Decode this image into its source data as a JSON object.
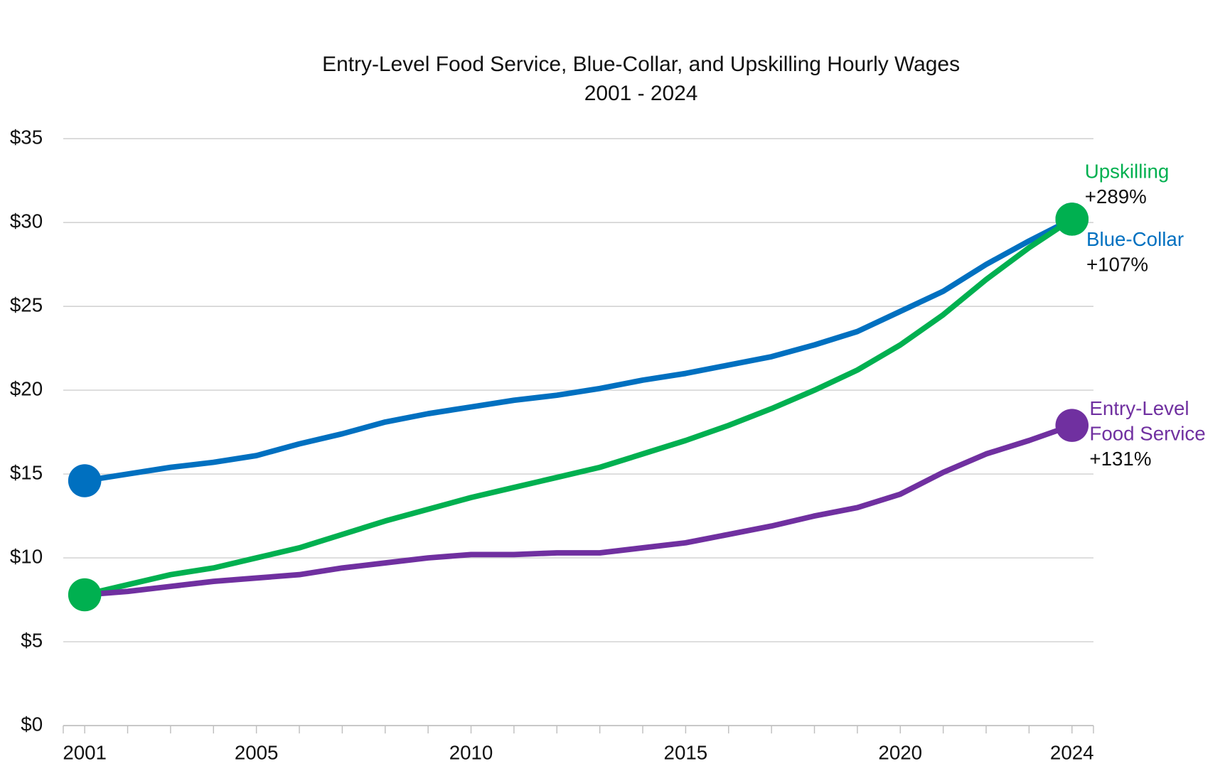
{
  "chart_data": {
    "type": "line",
    "title": "Entry-Level Food Service, Blue-Collar, and Upskilling Hourly Wages",
    "subtitle": "2001 - 2024",
    "x": [
      2001,
      2002,
      2003,
      2004,
      2005,
      2006,
      2007,
      2008,
      2009,
      2010,
      2011,
      2012,
      2013,
      2014,
      2015,
      2016,
      2017,
      2018,
      2019,
      2020,
      2021,
      2022,
      2023,
      2024
    ],
    "xlim": [
      2000.5,
      2024.5
    ],
    "xticks": [
      2001,
      2005,
      2010,
      2015,
      2020,
      2024
    ],
    "ylim": [
      0,
      35
    ],
    "yticks": [
      {
        "value": 0,
        "label": "$0"
      },
      {
        "value": 5,
        "label": "$5"
      },
      {
        "value": 10,
        "label": "$10"
      },
      {
        "value": 15,
        "label": "$15"
      },
      {
        "value": 20,
        "label": "$20"
      },
      {
        "value": 25,
        "label": "$25"
      },
      {
        "value": 30,
        "label": "$30"
      },
      {
        "value": 35,
        "label": "$35"
      }
    ],
    "grid": true,
    "series": [
      {
        "name": "Blue-Collar",
        "color": "#0070c0",
        "change": "+107%",
        "values": [
          14.6,
          15.0,
          15.4,
          15.7,
          16.1,
          16.8,
          17.4,
          18.1,
          18.6,
          19.0,
          19.4,
          19.7,
          20.1,
          20.6,
          21.0,
          21.5,
          22.0,
          22.7,
          23.5,
          24.7,
          25.9,
          27.5,
          28.9,
          30.2
        ]
      },
      {
        "name": "Upskilling",
        "color": "#00b050",
        "change": "+289%",
        "values": [
          7.8,
          8.4,
          9.0,
          9.4,
          10.0,
          10.6,
          11.4,
          12.2,
          12.9,
          13.6,
          14.2,
          14.8,
          15.4,
          16.2,
          17.0,
          17.9,
          18.9,
          20.0,
          21.2,
          22.7,
          24.5,
          26.6,
          28.5,
          30.2
        ]
      },
      {
        "name": "Entry-Level Food Service",
        "color": "#7030a0",
        "change": "+131%",
        "values": [
          7.8,
          8.0,
          8.3,
          8.6,
          8.8,
          9.0,
          9.4,
          9.7,
          10.0,
          10.2,
          10.2,
          10.3,
          10.3,
          10.6,
          10.9,
          11.4,
          11.9,
          12.5,
          13.0,
          13.8,
          15.1,
          16.2,
          17.0,
          17.9
        ]
      }
    ]
  }
}
